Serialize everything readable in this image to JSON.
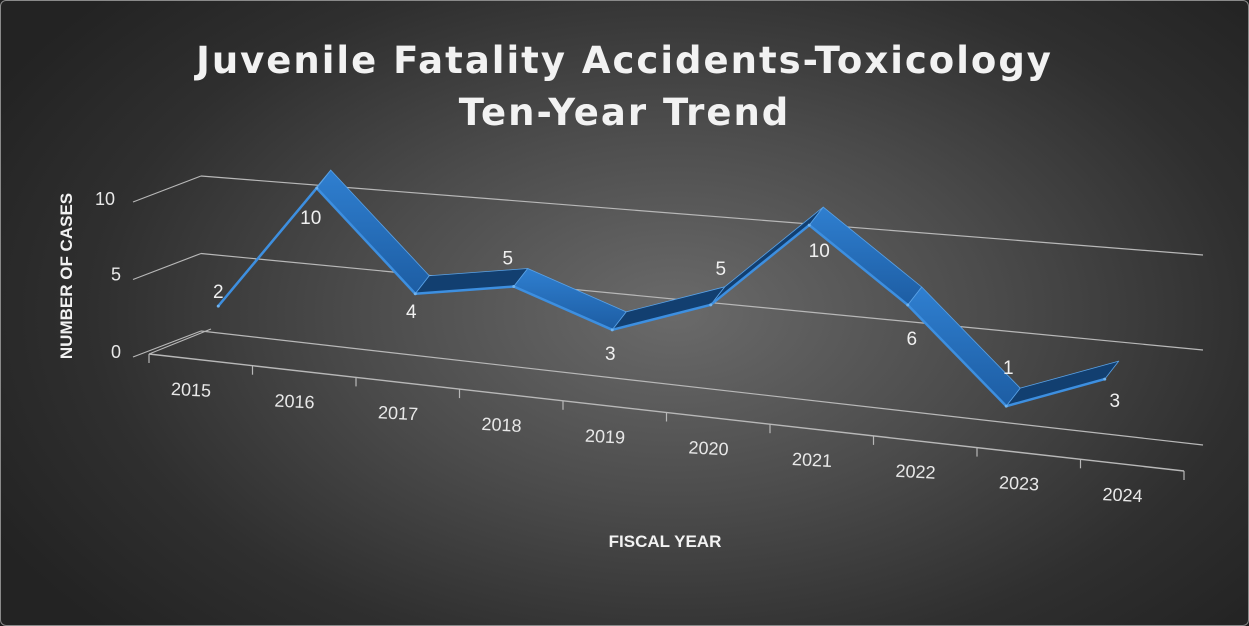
{
  "chart_data": {
    "type": "line",
    "title_line1": "Juvenile Fatality Accidents-Toxicology",
    "title_line2": "Ten-Year Trend",
    "xlabel": "FISCAL YEAR",
    "ylabel": "NUMBER OF CASES",
    "categories": [
      "2015",
      "2016",
      "2017",
      "2018",
      "2019",
      "2020",
      "2021",
      "2022",
      "2023",
      "2024"
    ],
    "series": [
      {
        "values": [
          2,
          10,
          4,
          5,
          3,
          5,
          10,
          6,
          1,
          3
        ]
      }
    ],
    "yticks": [
      "0",
      "5",
      "10"
    ],
    "ylim": [
      0,
      10
    ],
    "grid": true,
    "legend": "none",
    "style": "3d-ribbon"
  },
  "colors": {
    "background_center": "#6a6a6a",
    "background_edge": "#232323",
    "ribbon_top": "#2f7fd0",
    "ribbon_side": "#1d5da3",
    "ribbon_dark": "#123f70",
    "grid": "#b8b8b8",
    "text": "#f0f0f0"
  }
}
